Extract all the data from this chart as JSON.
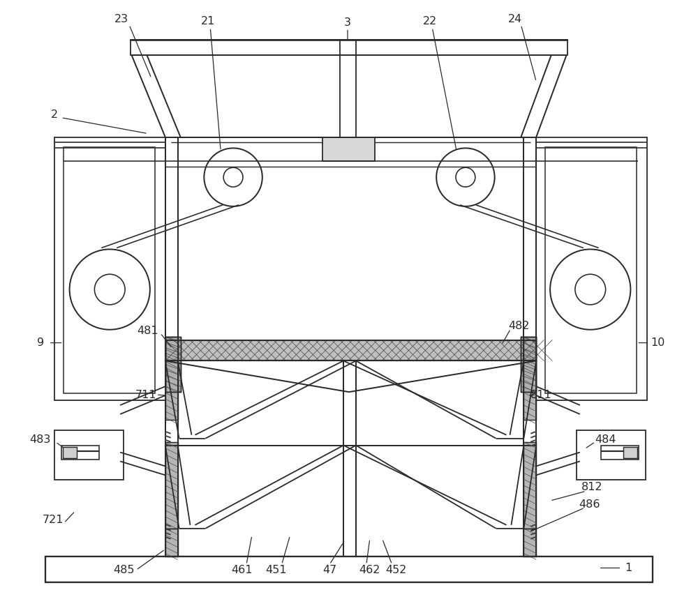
{
  "bg_color": "#ffffff",
  "line_color": "#2a2a2a",
  "lw": 1.3,
  "fig_w": 10.0,
  "fig_h": 8.59,
  "dpi": 100,
  "label_fontsize": 11.5
}
